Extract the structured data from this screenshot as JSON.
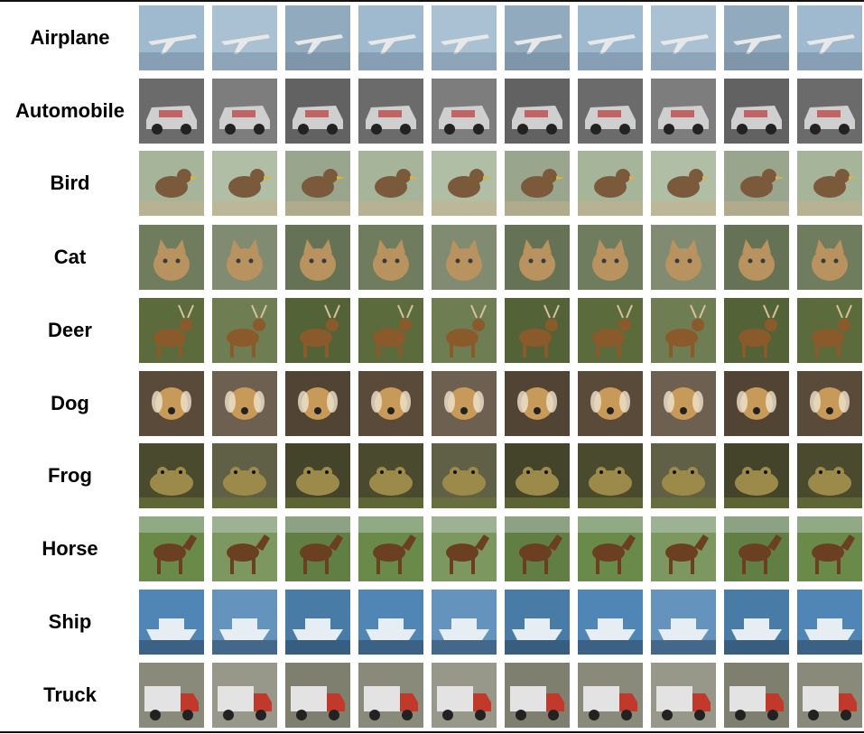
{
  "rows": [
    {
      "label": "Airplane",
      "icon": "airplane-icon",
      "bg": "#9fb9cf",
      "fg": "#e8e8e8",
      "accent": "#5b6f85"
    },
    {
      "label": "Automobile",
      "icon": "car-icon",
      "bg": "#6b6b6b",
      "fg": "#cfcfcf",
      "accent": "#b81d1d"
    },
    {
      "label": "Bird",
      "icon": "bird-icon",
      "bg": "#a6b59a",
      "fg": "#7a5a3a",
      "accent": "#c9b08a"
    },
    {
      "label": "Cat",
      "icon": "cat-icon",
      "bg": "#6f7c5e",
      "fg": "#b8935f",
      "accent": "#3a3a3a"
    },
    {
      "label": "Deer",
      "icon": "deer-icon",
      "bg": "#5c6b3c",
      "fg": "#8b5a2b",
      "accent": "#d7c19a"
    },
    {
      "label": "Dog",
      "icon": "dog-icon",
      "bg": "#5a4a3a",
      "fg": "#c89a5a",
      "accent": "#efe3cf"
    },
    {
      "label": "Frog",
      "icon": "frog-icon",
      "bg": "#4a4a2e",
      "fg": "#9b8a4a",
      "accent": "#6e7a3a"
    },
    {
      "label": "Horse",
      "icon": "horse-icon",
      "bg": "#6a8a4a",
      "fg": "#6b3f22",
      "accent": "#cfd8e0"
    },
    {
      "label": "Ship",
      "icon": "ship-icon",
      "bg": "#4f86b5",
      "fg": "#e6eef4",
      "accent": "#2f4b66"
    },
    {
      "label": "Truck",
      "icon": "truck-icon",
      "bg": "#8a8a7a",
      "fg": "#c0392b",
      "accent": "#e3e3e3"
    }
  ]
}
